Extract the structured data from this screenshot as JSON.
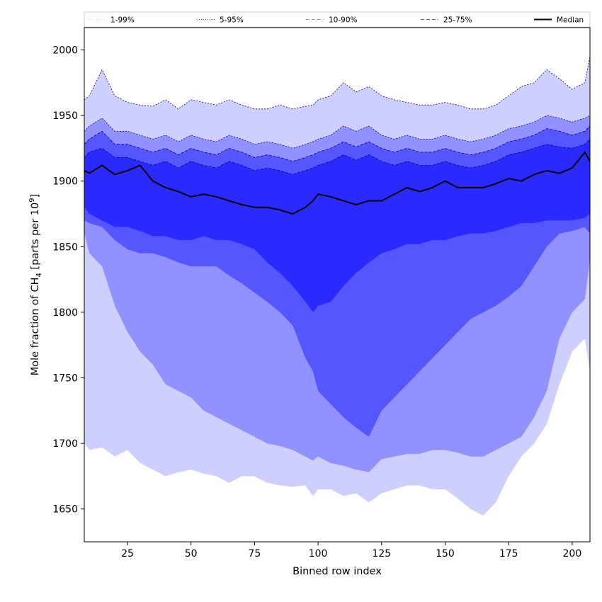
{
  "chart_data": {
    "type": "area",
    "xlabel": "Binned row index",
    "ylabel_parts": [
      "Mole fraction of CH",
      "4",
      " [parts per 10",
      "9",
      "]"
    ],
    "xlim": [
      8,
      207
    ],
    "ylim": [
      1625,
      2017
    ],
    "xticks": [
      25,
      50,
      75,
      100,
      125,
      150,
      175,
      200
    ],
    "yticks": [
      1650,
      1700,
      1750,
      1800,
      1850,
      1900,
      1950,
      2000
    ],
    "legend_position": "top",
    "colors": {
      "band_1_99": "#ceceff",
      "band_5_95": "#9191ff",
      "band_10_90": "#5656ff",
      "band_25_75": "#2a2aff",
      "edge": "#00008b",
      "median": "#000000"
    },
    "legend": [
      {
        "label": "1-99%",
        "style": "dotted",
        "color": "#c8c8e6"
      },
      {
        "label": "5-95%",
        "style": "dotted",
        "color": "#5050a0"
      },
      {
        "label": "10-90%",
        "style": "dashed",
        "color": "#8c8cf0"
      },
      {
        "label": "25-75%",
        "style": "dashed",
        "color": "#5a5af0"
      },
      {
        "label": "Median",
        "style": "solid",
        "color": "#000000"
      }
    ],
    "x": [
      8,
      10,
      15,
      20,
      25,
      30,
      35,
      40,
      45,
      50,
      55,
      60,
      65,
      70,
      75,
      80,
      85,
      90,
      95,
      98,
      100,
      105,
      110,
      115,
      120,
      125,
      130,
      135,
      140,
      145,
      150,
      155,
      160,
      165,
      170,
      175,
      180,
      185,
      190,
      195,
      200,
      205,
      207
    ],
    "series": [
      {
        "name": "1-99%",
        "kind": "band",
        "upper": [
          1962,
          1965,
          1985,
          1965,
          1960,
          1958,
          1957,
          1962,
          1955,
          1962,
          1960,
          1958,
          1962,
          1958,
          1955,
          1955,
          1958,
          1955,
          1957,
          1958,
          1962,
          1965,
          1975,
          1968,
          1972,
          1965,
          1962,
          1960,
          1958,
          1958,
          1960,
          1958,
          1955,
          1955,
          1958,
          1965,
          1972,
          1975,
          1985,
          1978,
          1970,
          1975,
          1995
        ],
        "lower": [
          1700,
          1695,
          1697,
          1690,
          1695,
          1685,
          1680,
          1675,
          1678,
          1680,
          1677,
          1675,
          1670,
          1675,
          1675,
          1670,
          1668,
          1667,
          1668,
          1660,
          1665,
          1665,
          1660,
          1662,
          1655,
          1662,
          1665,
          1668,
          1668,
          1665,
          1665,
          1658,
          1650,
          1645,
          1655,
          1675,
          1690,
          1700,
          1715,
          1745,
          1770,
          1780,
          1755
        ]
      },
      {
        "name": "5-95%",
        "kind": "band",
        "upper": [
          1938,
          1942,
          1948,
          1938,
          1938,
          1935,
          1932,
          1935,
          1930,
          1935,
          1932,
          1930,
          1935,
          1932,
          1928,
          1930,
          1928,
          1925,
          1928,
          1930,
          1932,
          1935,
          1942,
          1938,
          1942,
          1935,
          1932,
          1935,
          1932,
          1932,
          1935,
          1932,
          1930,
          1932,
          1935,
          1940,
          1942,
          1945,
          1950,
          1948,
          1945,
          1948,
          1950
        ],
        "lower": [
          1860,
          1845,
          1835,
          1805,
          1785,
          1770,
          1760,
          1745,
          1740,
          1735,
          1725,
          1720,
          1715,
          1710,
          1705,
          1700,
          1698,
          1695,
          1690,
          1687,
          1690,
          1685,
          1683,
          1680,
          1678,
          1688,
          1690,
          1692,
          1692,
          1695,
          1695,
          1693,
          1690,
          1690,
          1695,
          1700,
          1705,
          1720,
          1740,
          1780,
          1800,
          1810,
          1840
        ]
      },
      {
        "name": "10-90%",
        "kind": "band",
        "upper": [
          1928,
          1932,
          1938,
          1928,
          1928,
          1925,
          1922,
          1925,
          1920,
          1925,
          1922,
          1920,
          1925,
          1922,
          1918,
          1920,
          1918,
          1915,
          1918,
          1920,
          1922,
          1925,
          1930,
          1926,
          1930,
          1925,
          1922,
          1925,
          1922,
          1922,
          1925,
          1922,
          1920,
          1922,
          1925,
          1930,
          1932,
          1935,
          1940,
          1938,
          1935,
          1938,
          1942
        ],
        "lower": [
          1870,
          1868,
          1865,
          1855,
          1848,
          1845,
          1845,
          1842,
          1838,
          1835,
          1835,
          1835,
          1828,
          1822,
          1815,
          1808,
          1800,
          1790,
          1765,
          1755,
          1740,
          1730,
          1720,
          1712,
          1705,
          1725,
          1735,
          1745,
          1755,
          1765,
          1775,
          1785,
          1795,
          1800,
          1805,
          1812,
          1820,
          1835,
          1850,
          1860,
          1862,
          1865,
          1860
        ]
      },
      {
        "name": "25-75%",
        "kind": "band",
        "upper": [
          1918,
          1922,
          1925,
          1918,
          1918,
          1915,
          1912,
          1915,
          1910,
          1915,
          1912,
          1910,
          1915,
          1912,
          1908,
          1910,
          1908,
          1905,
          1908,
          1910,
          1912,
          1915,
          1920,
          1916,
          1920,
          1915,
          1912,
          1915,
          1912,
          1912,
          1915,
          1912,
          1910,
          1912,
          1915,
          1920,
          1922,
          1925,
          1928,
          1926,
          1925,
          1928,
          1932
        ],
        "lower": [
          1880,
          1875,
          1870,
          1865,
          1865,
          1862,
          1858,
          1858,
          1855,
          1855,
          1858,
          1855,
          1855,
          1852,
          1848,
          1838,
          1830,
          1820,
          1808,
          1800,
          1805,
          1808,
          1820,
          1830,
          1838,
          1845,
          1848,
          1852,
          1852,
          1855,
          1855,
          1858,
          1860,
          1860,
          1862,
          1865,
          1868,
          1868,
          1870,
          1870,
          1870,
          1872,
          1875
        ]
      },
      {
        "name": "Median",
        "kind": "line",
        "values": [
          1908,
          1906,
          1912,
          1905,
          1908,
          1912,
          1900,
          1895,
          1892,
          1888,
          1890,
          1888,
          1885,
          1882,
          1880,
          1880,
          1878,
          1875,
          1880,
          1885,
          1890,
          1888,
          1885,
          1882,
          1885,
          1885,
          1890,
          1895,
          1892,
          1895,
          1900,
          1895,
          1895,
          1895,
          1898,
          1902,
          1900,
          1905,
          1908,
          1906,
          1910,
          1922,
          1915
        ]
      }
    ]
  }
}
